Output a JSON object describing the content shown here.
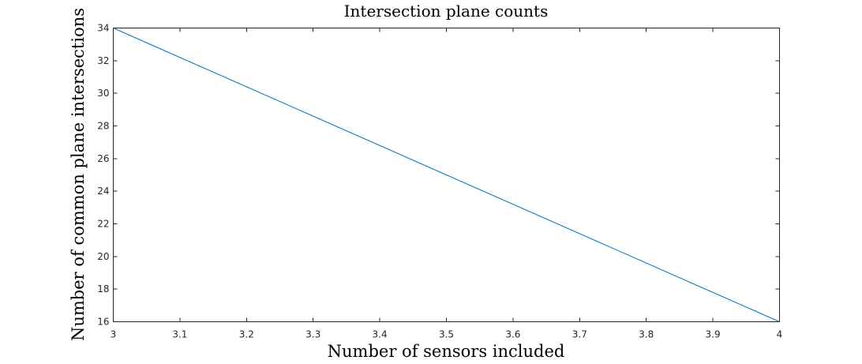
{
  "chart_data": {
    "type": "line",
    "title": "Intersection plane counts",
    "xlabel": "Number of sensors included",
    "ylabel": "Number of common plane intersections",
    "xlim": [
      3,
      4
    ],
    "ylim": [
      16,
      34
    ],
    "xticks": [
      "3",
      "3.1",
      "3.2",
      "3.3",
      "3.4",
      "3.5",
      "3.6",
      "3.7",
      "3.8",
      "3.9",
      "4"
    ],
    "yticks": [
      "16",
      "18",
      "20",
      "22",
      "24",
      "26",
      "28",
      "30",
      "32",
      "34"
    ],
    "grid": false,
    "series": [
      {
        "x": [
          3,
          4
        ],
        "y": [
          34,
          16
        ],
        "color": "#0072bd"
      }
    ]
  }
}
